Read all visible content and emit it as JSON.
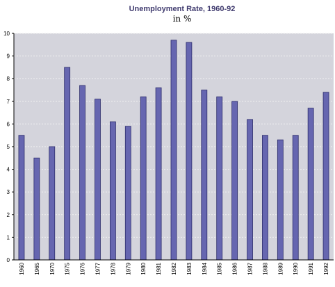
{
  "chart_data": {
    "type": "bar",
    "title": "Unemployment Rate, 1960-92",
    "subtitle": "in %",
    "categories": [
      "1960",
      "1965",
      "1970",
      "1975",
      "1976",
      "1977",
      "1978",
      "1979",
      "1980",
      "1981",
      "1982",
      "1983",
      "1984",
      "1985",
      "1986",
      "1987",
      "1988",
      "1989",
      "1990",
      "1991",
      "1992"
    ],
    "values": [
      5.5,
      4.5,
      5.0,
      8.5,
      7.7,
      7.1,
      6.1,
      5.9,
      7.2,
      7.6,
      9.7,
      9.6,
      7.5,
      7.2,
      7.0,
      6.2,
      5.5,
      5.3,
      5.5,
      6.7,
      7.4
    ],
    "yticks": [
      "0",
      "1",
      "2",
      "3",
      "4",
      "5",
      "6",
      "7",
      "8",
      "9",
      "10"
    ],
    "ylim": [
      0,
      10
    ],
    "grid": true,
    "legend": "none",
    "colors": {
      "plot_background": "#d4d4dc",
      "bar_fill": "#6666b0",
      "bar_stroke": "#2c2c6a",
      "grid": "#f2f2f2",
      "axis": "#000000"
    }
  }
}
